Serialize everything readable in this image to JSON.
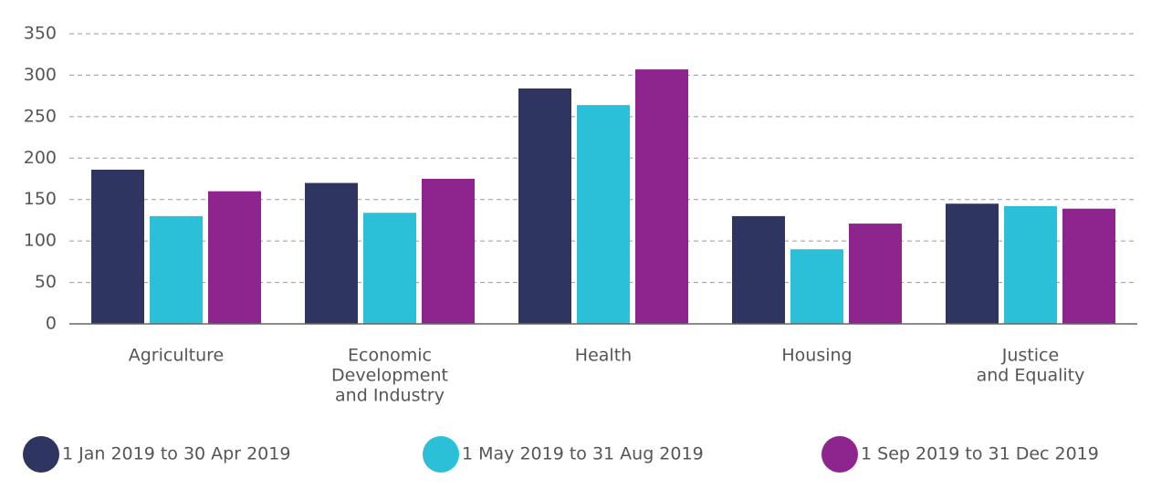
{
  "chart_data": {
    "type": "bar",
    "categories": [
      [
        "Agriculture"
      ],
      [
        "Economic",
        "Development",
        "and Industry"
      ],
      [
        "Health"
      ],
      [
        "Housing"
      ],
      [
        "Justice",
        "and Equality"
      ]
    ],
    "series": [
      {
        "name": "1 Jan 2019 to 30 Apr 2019",
        "color": "#2e3561",
        "values": [
          186,
          170,
          284,
          130,
          145
        ]
      },
      {
        "name": "1 May 2019 to 31 Aug 2019",
        "color": "#2bbfd8",
        "values": [
          130,
          134,
          264,
          90,
          142
        ]
      },
      {
        "name": "1 Sep 2019 to 31 Dec 2019",
        "color": "#8e258f",
        "values": [
          160,
          175,
          307,
          121,
          139
        ]
      }
    ],
    "ylim": [
      0,
      350
    ],
    "yticks": [
      0,
      50,
      100,
      150,
      200,
      250,
      300,
      350
    ],
    "grid": true,
    "legend": "bottom"
  }
}
